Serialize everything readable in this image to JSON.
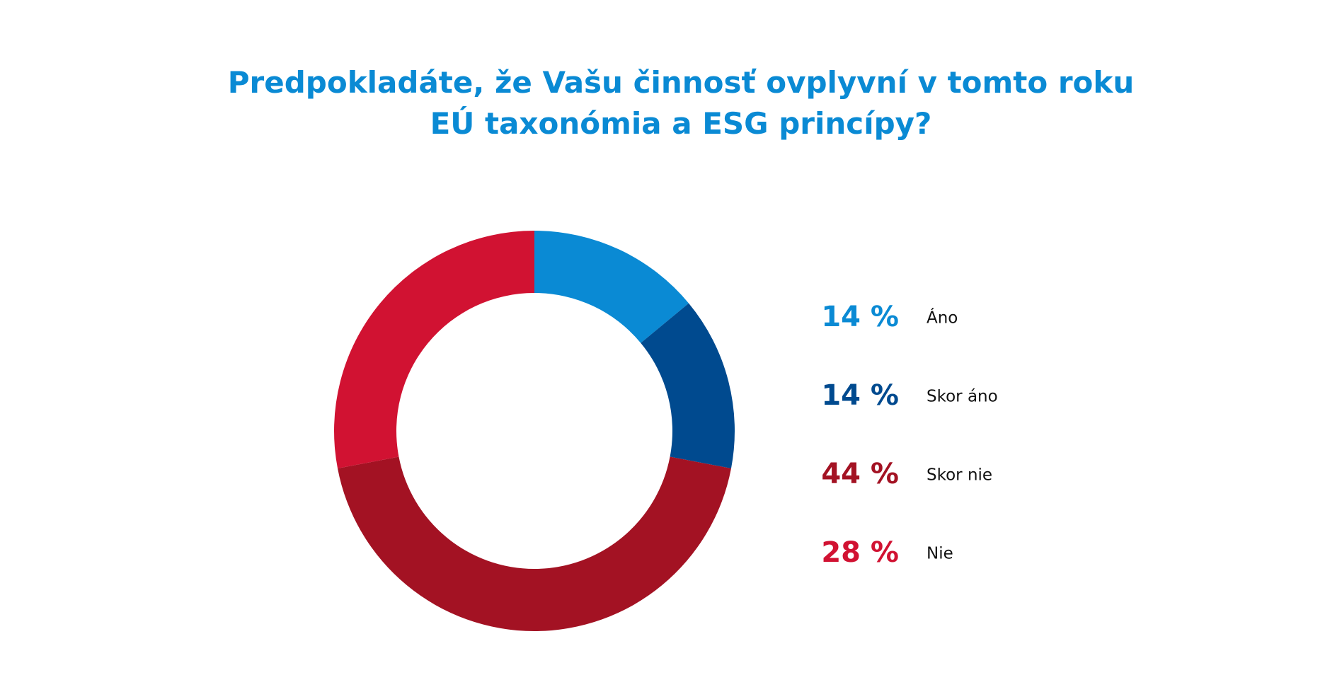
{
  "chart_data": {
    "type": "donut",
    "title": "Predpokladáte, že Vašu činnosť ovplyvní v tomto roku EÚ taxonómia a ESG princípy?",
    "categories": [
      "Áno",
      "Skor áno",
      "Skor nie",
      "Nie"
    ],
    "values": [
      14,
      14,
      44,
      28
    ],
    "value_labels": [
      "14 %",
      "14 %",
      "44 %",
      "28 %"
    ],
    "colors": [
      "#0a8ad4",
      "#004a8f",
      "#a31223",
      "#d11232"
    ]
  }
}
